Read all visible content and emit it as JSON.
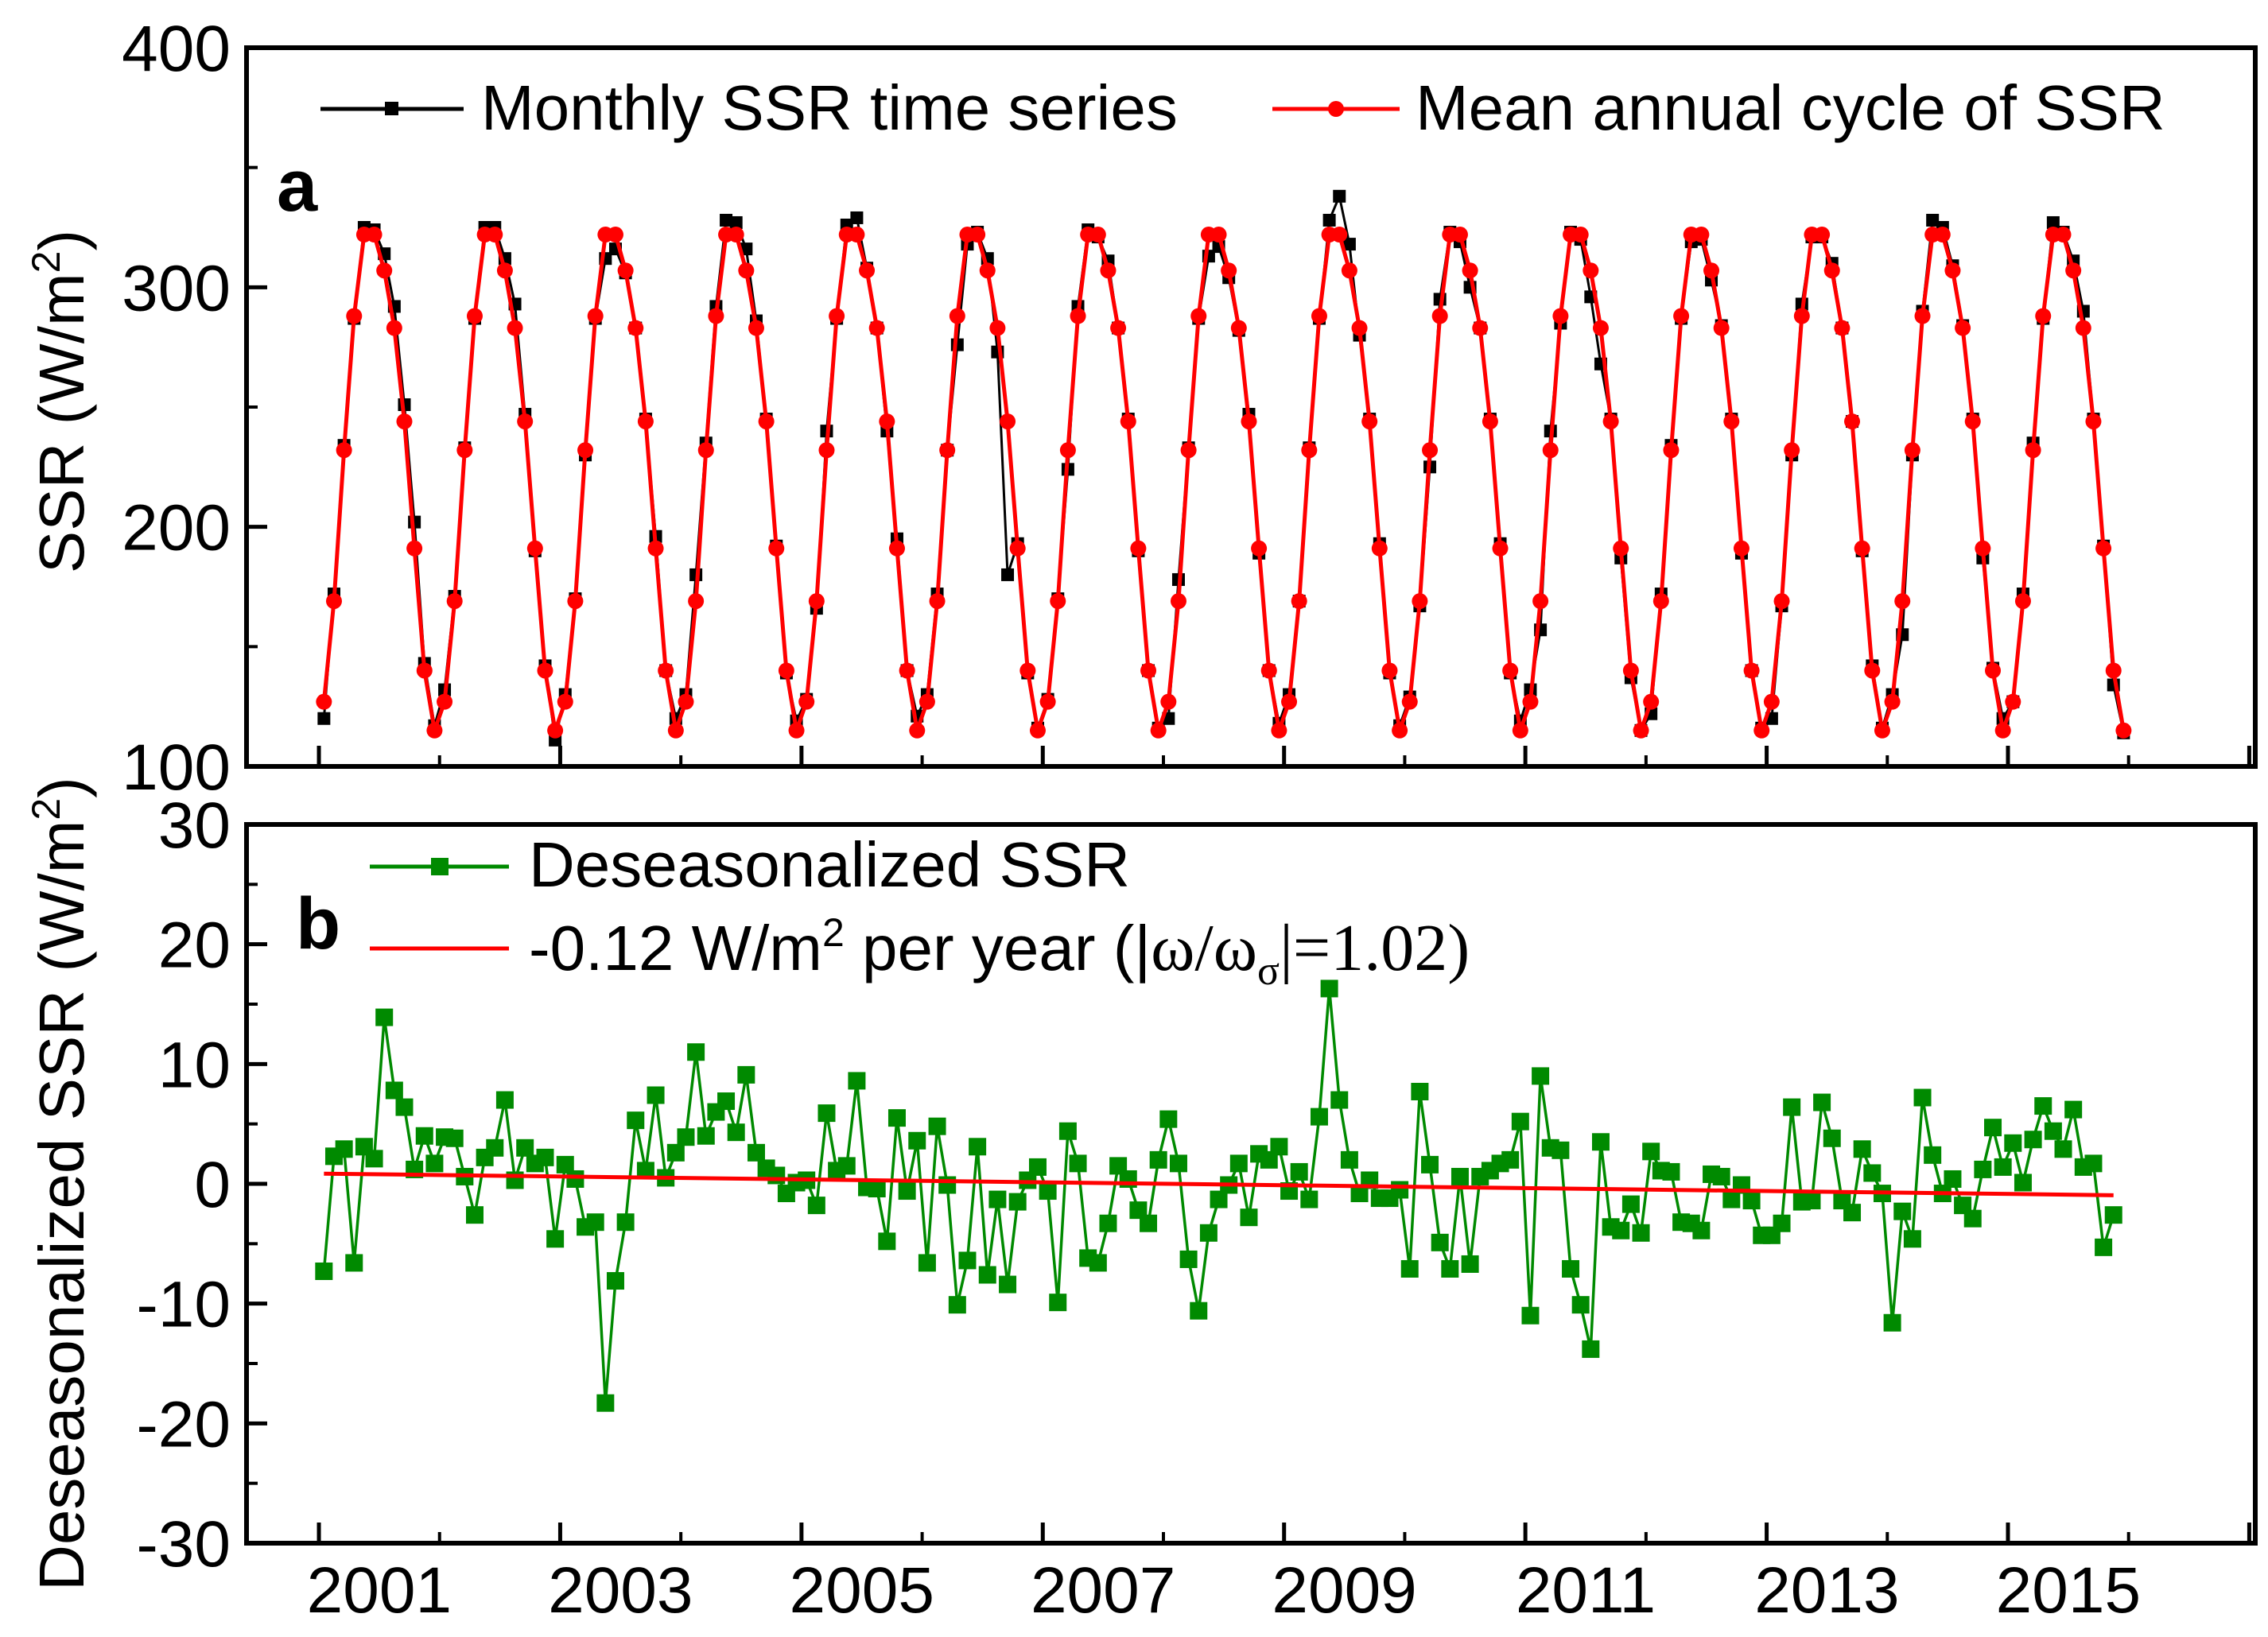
{
  "chart_data": [
    {
      "panel": "a",
      "type": "line",
      "ylabel": "SSR (W/m",
      "ylabel_sup": "2",
      "ylabel_close": ")",
      "ylim": [
        100,
        400
      ],
      "yticks": [
        100,
        200,
        300,
        400
      ],
      "legend": {
        "placement": "top",
        "entries": [
          "Monthly SSR time series",
          "Mean annual cycle of SSR"
        ]
      },
      "series": [
        {
          "name": "Monthly SSR time series",
          "color": "#000000",
          "marker": "square",
          "x_start": "2000-01",
          "x_step": "1 month",
          "values": [
            120,
            172,
            234,
            287,
            325,
            324,
            314,
            292,
            251,
            202,
            143,
            117,
            132,
            171,
            233,
            287,
            325,
            325,
            312,
            293,
            247,
            190,
            142,
            111,
            130,
            170,
            230,
            287,
            312,
            316,
            306,
            283,
            245,
            196,
            140,
            120,
            130,
            180,
            235,
            292,
            328,
            327,
            316,
            286,
            245,
            192,
            139,
            119,
            128,
            166,
            240,
            287,
            326,
            329,
            308,
            283,
            240,
            195,
            140,
            121,
            130,
            172,
            232,
            276,
            318,
            323,
            312,
            273,
            180,
            193,
            139,
            116,
            128,
            170,
            224,
            292,
            324,
            321,
            311,
            283,
            245,
            190,
            140,
            116,
            120,
            178,
            233,
            287,
            313,
            317,
            304,
            282,
            247,
            189,
            140,
            118,
            130,
            169,
            233,
            287,
            328,
            338,
            318,
            280,
            245,
            193,
            139,
            117,
            129,
            167,
            225,
            295,
            323,
            319,
            300,
            283,
            245,
            193,
            139,
            119,
            132,
            157,
            240,
            285,
            323,
            320,
            296,
            268,
            245,
            187,
            137,
            115,
            122,
            172,
            234,
            287,
            319,
            320,
            303,
            284,
            245,
            189,
            140,
            116,
            120,
            167,
            230,
            293,
            321,
            321,
            310,
            283,
            244,
            190,
            142,
            116,
            130,
            155,
            230,
            290,
            328,
            325,
            309,
            284,
            245,
            187,
            141,
            120,
            127,
            172,
            235,
            287,
            327,
            323,
            311,
            290,
            245,
            192,
            134,
            114
          ]
        },
        {
          "name": "Mean annual cycle of SSR",
          "color": "#ff0000",
          "marker": "circle",
          "x_start": "2000-01",
          "x_step": "1 month",
          "cycle": [
            127,
            169,
            232,
            288,
            322,
            322,
            307,
            283,
            244,
            191,
            140,
            115
          ],
          "years": 15
        }
      ]
    },
    {
      "panel": "b",
      "type": "line",
      "ylabel": "Deseasonalized SSR (W/m",
      "ylabel_sup": "2",
      "ylabel_close": ")",
      "ylim": [
        -30,
        30
      ],
      "yticks": [
        -30,
        -20,
        -10,
        0,
        10,
        20,
        30
      ],
      "xticks": [
        "2001",
        "2003",
        "2005",
        "2007",
        "2009",
        "2011",
        "2013",
        "2015"
      ],
      "legend": {
        "placement": "top-left",
        "entries": [
          "Deseasonalized SSR"
        ],
        "trend_label_prefix": "-0.12 W/m",
        "trend_label_sup": "2",
        "trend_label_mid": " per year (|",
        "trend_label_omega": "ω/ω",
        "trend_label_sub": "σ",
        "trend_label_end": "|=1.02)"
      },
      "series": [
        {
          "name": "Deseasonalized SSR",
          "color": "#008a00",
          "marker": "square",
          "x_start": "2000-01",
          "x_step": "1 month",
          "values": [
            -7.3,
            2.3,
            2.9,
            -6.6,
            3.1,
            2.1,
            13.9,
            7.8,
            6.4,
            1.2,
            4.0,
            1.7,
            3.9,
            3.8,
            0.6,
            -2.6,
            2.2,
            3.0,
            7.0,
            0.3,
            3.0,
            1.7,
            2.2,
            -4.6,
            1.6,
            0.4,
            -3.6,
            -3.2,
            -18.3,
            -8.1,
            -3.2,
            5.3,
            1.1,
            7.4,
            0.5,
            2.6,
            3.9,
            11.0,
            4.0,
            6.0,
            6.9,
            4.3,
            9.1,
            2.6,
            1.3,
            0.7,
            -0.8,
            0.1,
            0.3,
            -1.8,
            5.9,
            1.1,
            1.5,
            8.6,
            -0.3,
            -0.4,
            -4.8,
            5.5,
            -0.6,
            3.6,
            -6.6,
            4.8,
            -0.1,
            -10.1,
            -6.4,
            3.1,
            -7.6,
            -1.3,
            -8.4,
            -1.5,
            0.3,
            1.4,
            -0.6,
            -9.9,
            4.4,
            1.7,
            -6.2,
            -6.6,
            -3.3,
            1.5,
            0.4,
            -2.2,
            -3.3,
            2.0,
            5.4,
            1.7,
            -6.3,
            -10.6,
            -4.1,
            -1.3,
            -0.1,
            1.7,
            -2.8,
            2.5,
            2.0,
            3.1,
            -0.6,
            1.0,
            -1.3,
            5.6,
            16.3,
            7.0,
            2.0,
            -0.8,
            0.3,
            -1.2,
            -1.2,
            -0.5,
            -7.1,
            7.7,
            1.6,
            -4.9,
            -7.1,
            0.6,
            -6.7,
            0.6,
            1.1,
            1.7,
            2.0,
            5.2,
            -11.0,
            9.0,
            3.0,
            2.8,
            -7.1,
            -10.1,
            -13.8,
            3.5,
            -3.6,
            -3.9,
            -1.7,
            -4.1,
            2.7,
            1.1,
            1.0,
            -3.2,
            -3.3,
            -3.9,
            0.8,
            0.6,
            -1.3,
            -0.1,
            -1.4,
            -4.3,
            -4.3,
            -3.3,
            6.4,
            -1.5,
            -1.4,
            6.8,
            3.8,
            -1.4,
            -2.4,
            2.9,
            0.9,
            -0.8,
            -11.6,
            -2.3,
            -4.6,
            7.2,
            2.4,
            -0.8,
            0.4,
            -1.8,
            -2.9,
            1.2,
            4.7,
            1.4,
            3.4,
            0.1,
            3.7,
            6.5,
            4.4,
            2.9,
            6.2,
            1.4,
            1.7,
            -5.3,
            -2.6
          ]
        },
        {
          "name": "-0.12 W/m2 per year (|ω/ωσ|=1.02)",
          "color": "#ff0000",
          "type": "trend",
          "x": [
            "2000-01",
            "2015-12"
          ],
          "values": [
            0.85,
            -0.95
          ]
        }
      ]
    }
  ]
}
